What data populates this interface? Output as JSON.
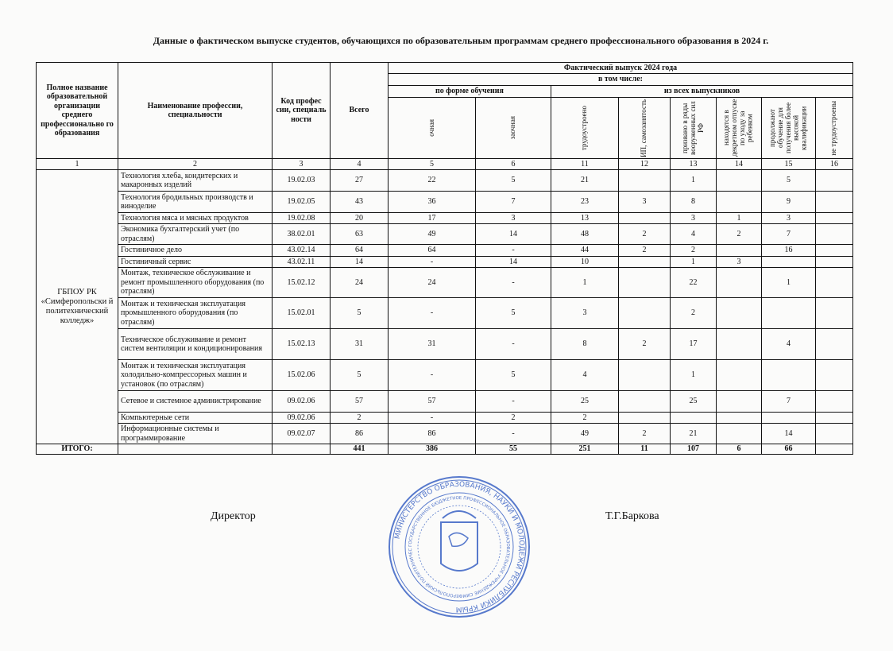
{
  "title": "Данные о фактическом выпуске студентов, обучающихся по образовательным программам среднего профессионального образования в 2024 г.",
  "header": {
    "org": "Полное название образовательной организации среднего профессионально го образования",
    "profession": "Наименование профессии, специальности",
    "code": "Код профес сии, специаль ности",
    "total": "Всего",
    "actual": "Фактический выпуск 2024 года",
    "including": "в том числе:",
    "by_form": "по форме обучения",
    "of_all": "из всех выпускников",
    "cols": [
      "очная",
      "заочная",
      "трудоустроено",
      "ИП, самозанятость",
      "призвано в ряды вооруженных сил РФ",
      "находятся в декретном отпуске по уходу за ребенком",
      "продолжают обучение для получения более высокой квалификации",
      "не трудоустроены"
    ],
    "numbers": [
      "1",
      "2",
      "3",
      "4",
      "5",
      "6",
      "11",
      "12",
      "13",
      "14",
      "15",
      "16"
    ]
  },
  "org_name": "ГБПОУ РК «Симферопольски й политехнический колледж»",
  "rows": [
    {
      "name": "Технология хлеба, кондитерских и макаронных изделий",
      "code": "19.02.03",
      "total": "27",
      "c5": "22",
      "c6": "5",
      "c11": "21",
      "c12": "",
      "c13": "1",
      "c14": "",
      "c15": "5",
      "c16": ""
    },
    {
      "name": "Технология бродильных производств и виноделие",
      "code": "19.02.05",
      "total": "43",
      "c5": "36",
      "c6": "7",
      "c11": "23",
      "c12": "3",
      "c13": "8",
      "c14": "",
      "c15": "9",
      "c16": ""
    },
    {
      "name": "Технология мяса и мясных продуктов",
      "code": "19.02.08",
      "total": "20",
      "c5": "17",
      "c6": "3",
      "c11": "13",
      "c12": "",
      "c13": "3",
      "c14": "1",
      "c15": "3",
      "c16": ""
    },
    {
      "name": "Экономика бухгалтерский учет (по отраслям)",
      "code": "38.02.01",
      "total": "63",
      "c5": "49",
      "c6": "14",
      "c11": "48",
      "c12": "2",
      "c13": "4",
      "c14": "2",
      "c15": "7",
      "c16": ""
    },
    {
      "name": "Гостиничное дело",
      "code": "43.02.14",
      "total": "64",
      "c5": "64",
      "c6": "-",
      "c11": "44",
      "c12": "2",
      "c13": "2",
      "c14": "",
      "c15": "16",
      "c16": ""
    },
    {
      "name": "Гостиничный сервис",
      "code": "43.02.11",
      "total": "14",
      "c5": "-",
      "c6": "14",
      "c11": "10",
      "c12": "",
      "c13": "1",
      "c14": "3",
      "c15": "",
      "c16": ""
    },
    {
      "name": "Монтаж, техническое обслуживание и ремонт  промышленного оборудования (по отраслям)",
      "code": "15.02.12",
      "total": "24",
      "c5": "24",
      "c6": "-",
      "c11": "1",
      "c12": "",
      "c13": "22",
      "c14": "",
      "c15": "1",
      "c16": ""
    },
    {
      "name": "Монтаж и техническая эксплуатация промышленного оборудования (по отраслям)",
      "code": "15.02.01",
      "total": "5",
      "c5": "-",
      "c6": "5",
      "c11": "3",
      "c12": "",
      "c13": "2",
      "c14": "",
      "c15": "",
      "c16": ""
    },
    {
      "name": "Техническое обслуживание и ремонт систем вентиляции и кондиционирования",
      "code": "15.02.13",
      "total": "31",
      "c5": "31",
      "c6": "-",
      "c11": "8",
      "c12": "2",
      "c13": "17",
      "c14": "",
      "c15": "4",
      "c16": ""
    },
    {
      "name": "Монтаж и техническая эксплуатация холодильно-компрессорных машин и установок (по отраслям)",
      "code": "15.02.06",
      "total": "5",
      "c5": "-",
      "c6": "5",
      "c11": "4",
      "c12": "",
      "c13": "1",
      "c14": "",
      "c15": "",
      "c16": ""
    },
    {
      "name": "Сетевое и системное администрирование",
      "code": "09.02.06",
      "total": "57",
      "c5": "57",
      "c6": "-",
      "c11": "25",
      "c12": "",
      "c13": "25",
      "c14": "",
      "c15": "7",
      "c16": ""
    },
    {
      "name": "Компьютерные сети",
      "code": "09.02.06",
      "total": "2",
      "c5": "-",
      "c6": "2",
      "c11": "2",
      "c12": "",
      "c13": "",
      "c14": "",
      "c15": "",
      "c16": ""
    },
    {
      "name": "Информационные системы и программирование",
      "code": "09.02.07",
      "total": "86",
      "c5": "86",
      "c6": "-",
      "c11": "49",
      "c12": "2",
      "c13": "21",
      "c14": "",
      "c15": "14",
      "c16": ""
    }
  ],
  "totals": {
    "label": "ИТОГО:",
    "code": "",
    "total": "441",
    "c5": "386",
    "c6": "55",
    "c11": "251",
    "c12": "11",
    "c13": "107",
    "c14": "6",
    "c15": "66",
    "c16": ""
  },
  "signature": {
    "role": "Директор",
    "name": "Т.Г.Баркова"
  },
  "seal": {
    "outer_text": "МИНИСТЕРСТВО ОБРАЗОВАНИЯ, НАУКИ И МОЛОДЕЖИ РЕСПУБЛИКИ КРЫМ",
    "inner_text": "ГОСУДАРСТВЕННОЕ БЮДЖЕТНОЕ ПРОФЕССИОНАЛЬНОЕ ОБРАЗОВАТЕЛЬНОЕ УЧРЕЖДЕНИЕ СИМФЕРОПОЛЬСКИЙ ПОЛИТЕХНИЧЕСКИЙ КОЛЛЕДЖ",
    "color": "#3b63c4"
  }
}
